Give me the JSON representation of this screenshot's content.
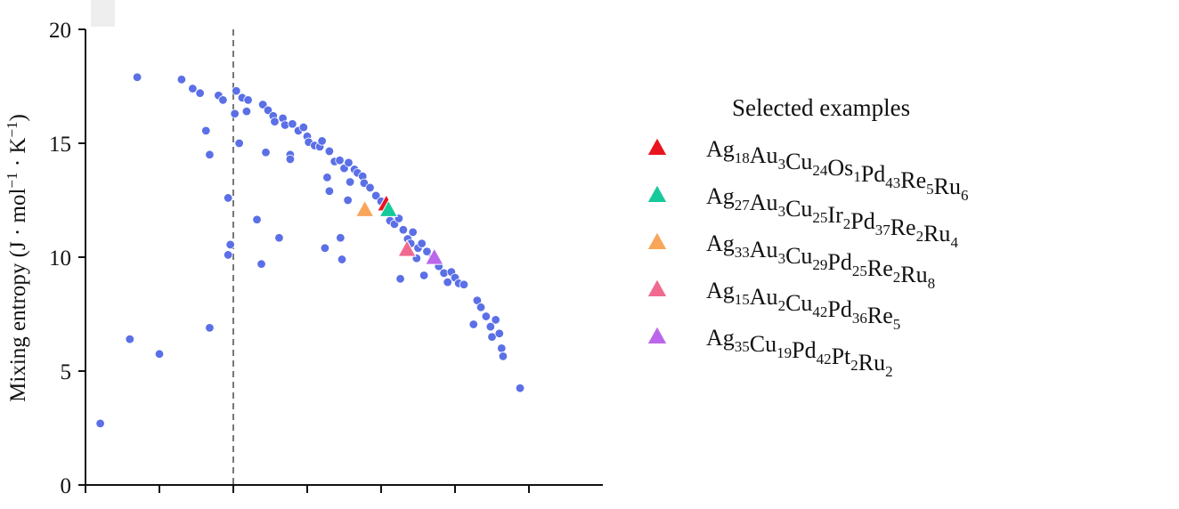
{
  "chart_data": {
    "type": "scatter",
    "title": "",
    "xlabel": "",
    "ylabel": "Mixing entropy (J · mol⁻¹ · K⁻¹)",
    "xlim": [
      -2,
      5
    ],
    "ylim": [
      0,
      20
    ],
    "y_ticks": [
      "0",
      "5",
      "10",
      "15",
      "20"
    ],
    "x_ticks_labeled": false,
    "reference_line": {
      "x": 0,
      "style": "dashed",
      "color": "#777777"
    },
    "point_color": "#5b6fe6",
    "series": [
      {
        "name": "",
        "marker": "circle",
        "color": "#5b6fe6",
        "points": [
          [
            -1.8,
            2.7
          ],
          [
            -1.4,
            6.4
          ],
          [
            -1.3,
            17.9
          ],
          [
            -1.0,
            5.75
          ],
          [
            -0.7,
            17.8
          ],
          [
            -0.55,
            17.4
          ],
          [
            -0.45,
            17.2
          ],
          [
            -0.37,
            15.55
          ],
          [
            -0.32,
            14.5
          ],
          [
            -0.32,
            6.9
          ],
          [
            -0.2,
            17.1
          ],
          [
            -0.14,
            16.9
          ],
          [
            -0.07,
            12.6
          ],
          [
            -0.07,
            10.1
          ],
          [
            -0.04,
            10.55
          ],
          [
            0.02,
            16.3
          ],
          [
            0.04,
            17.3
          ],
          [
            0.08,
            15.0
          ],
          [
            0.12,
            17.0
          ],
          [
            0.18,
            16.4
          ],
          [
            0.2,
            16.9
          ],
          [
            0.32,
            11.65
          ],
          [
            0.38,
            9.7
          ],
          [
            0.4,
            16.7
          ],
          [
            0.44,
            14.6
          ],
          [
            0.47,
            16.45
          ],
          [
            0.54,
            16.2
          ],
          [
            0.56,
            15.95
          ],
          [
            0.62,
            10.85
          ],
          [
            0.67,
            16.1
          ],
          [
            0.7,
            15.8
          ],
          [
            0.77,
            14.5
          ],
          [
            0.77,
            14.3
          ],
          [
            0.8,
            15.85
          ],
          [
            0.88,
            15.55
          ],
          [
            0.95,
            15.7
          ],
          [
            1.0,
            15.3
          ],
          [
            1.02,
            15.05
          ],
          [
            1.1,
            14.9
          ],
          [
            1.17,
            14.85
          ],
          [
            1.2,
            15.1
          ],
          [
            1.24,
            10.4
          ],
          [
            1.27,
            13.5
          ],
          [
            1.3,
            12.9
          ],
          [
            1.3,
            14.65
          ],
          [
            1.37,
            14.2
          ],
          [
            1.44,
            14.25
          ],
          [
            1.45,
            10.85
          ],
          [
            1.47,
            9.9
          ],
          [
            1.5,
            13.9
          ],
          [
            1.55,
            12.5
          ],
          [
            1.56,
            14.15
          ],
          [
            1.58,
            13.3
          ],
          [
            1.64,
            13.85
          ],
          [
            1.68,
            13.7
          ],
          [
            1.75,
            13.55
          ],
          [
            1.77,
            13.25
          ],
          [
            1.85,
            13.05
          ],
          [
            1.93,
            12.7
          ],
          [
            2.0,
            12.45
          ],
          [
            2.08,
            12.1
          ],
          [
            2.12,
            11.6
          ],
          [
            2.18,
            11.45
          ],
          [
            2.24,
            11.7
          ],
          [
            2.26,
            9.05
          ],
          [
            2.3,
            11.2
          ],
          [
            2.36,
            10.8
          ],
          [
            2.4,
            10.6
          ],
          [
            2.43,
            11.1
          ],
          [
            2.48,
            9.95
          ],
          [
            2.5,
            10.4
          ],
          [
            2.55,
            10.6
          ],
          [
            2.58,
            9.2
          ],
          [
            2.62,
            10.25
          ],
          [
            2.7,
            10.0
          ],
          [
            2.78,
            9.6
          ],
          [
            2.85,
            9.3
          ],
          [
            2.9,
            8.9
          ],
          [
            2.95,
            9.35
          ],
          [
            3.0,
            9.1
          ],
          [
            3.05,
            8.85
          ],
          [
            3.12,
            8.8
          ],
          [
            3.25,
            7.05
          ],
          [
            3.3,
            8.1
          ],
          [
            3.35,
            7.8
          ],
          [
            3.42,
            7.4
          ],
          [
            3.48,
            6.95
          ],
          [
            3.5,
            6.5
          ],
          [
            3.55,
            7.25
          ],
          [
            3.6,
            6.65
          ],
          [
            3.63,
            6.0
          ],
          [
            3.65,
            5.65
          ],
          [
            3.88,
            4.25
          ]
        ]
      },
      {
        "name": "Ag18Au3Cu24Os1Pd43Re5Ru6",
        "marker": "triangle",
        "color": "#e8141e",
        "points": [
          [
            2.07,
            12.3
          ]
        ]
      },
      {
        "name": "Ag27Au3Cu25Ir2Pd37Re2Ru4",
        "marker": "triangle",
        "color": "#16c99a",
        "points": [
          [
            2.1,
            12.05
          ]
        ]
      },
      {
        "name": "Ag33Au3Cu29Pd25Re2Ru8",
        "marker": "triangle",
        "color": "#f8a55a",
        "points": [
          [
            1.78,
            12.05
          ]
        ]
      },
      {
        "name": "Ag15Au2Cu42Pd36Re5",
        "marker": "triangle",
        "color": "#f06a90",
        "points": [
          [
            2.35,
            10.3
          ]
        ]
      },
      {
        "name": "Ag35Cu19Pd42Pt2Ru2",
        "marker": "triangle",
        "color": "#bb66ea",
        "points": [
          [
            2.72,
            9.95
          ]
        ]
      }
    ],
    "legend": {
      "title": "Selected examples",
      "placement": "right",
      "entries": [
        {
          "color": "#e8141e",
          "parts": [
            [
              "Ag",
              "18"
            ],
            [
              "Au",
              "3"
            ],
            [
              "Cu",
              "24"
            ],
            [
              "Os",
              "1"
            ],
            [
              "Pd",
              "43"
            ],
            [
              "Re",
              "5"
            ],
            [
              "Ru",
              "6"
            ]
          ]
        },
        {
          "color": "#16c99a",
          "parts": [
            [
              "Ag",
              "27"
            ],
            [
              "Au",
              "3"
            ],
            [
              "Cu",
              "25"
            ],
            [
              "Ir",
              "2"
            ],
            [
              "Pd",
              "37"
            ],
            [
              "Re",
              "2"
            ],
            [
              "Ru",
              "4"
            ]
          ]
        },
        {
          "color": "#f8a55a",
          "parts": [
            [
              "Ag",
              "33"
            ],
            [
              "Au",
              "3"
            ],
            [
              "Cu",
              "29"
            ],
            [
              "Pd",
              "25"
            ],
            [
              "Re",
              "2"
            ],
            [
              "Ru",
              "8"
            ]
          ]
        },
        {
          "color": "#f06a90",
          "parts": [
            [
              "Ag",
              "15"
            ],
            [
              "Au",
              "2"
            ],
            [
              "Cu",
              "42"
            ],
            [
              "Pd",
              "36"
            ],
            [
              "Re",
              "5"
            ]
          ]
        },
        {
          "color": "#bb66ea",
          "parts": [
            [
              "Ag",
              "35"
            ],
            [
              "Cu",
              "19"
            ],
            [
              "Pd",
              "42"
            ],
            [
              "Pt",
              "2"
            ],
            [
              "Ru",
              "2"
            ]
          ]
        }
      ]
    }
  }
}
